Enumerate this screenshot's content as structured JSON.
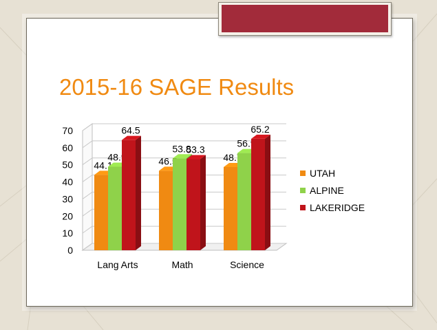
{
  "slide": {
    "title": "2015-16 SAGE Results"
  },
  "colors": {
    "background": "#e7e1d4",
    "banner": "#a22b3a",
    "title": "#f08a12"
  },
  "chart_data": {
    "type": "bar",
    "style": "3d-clustered-column",
    "title": "",
    "xlabel": "",
    "ylabel": "",
    "categories": [
      "Lang Arts",
      "Math",
      "Science"
    ],
    "series": [
      {
        "name": "UTAH",
        "values": [
          44.1,
          46.5,
          48.7
        ],
        "color": "#f08a12"
      },
      {
        "name": "ALPINE",
        "values": [
          48.9,
          53.8,
          56.9
        ],
        "color": "#8fd24a"
      },
      {
        "name": "LAKERIDGE",
        "values": [
          64.5,
          53.3,
          65.2
        ],
        "color": "#c0141b"
      }
    ],
    "ylim": [
      0,
      70
    ],
    "yticks": [
      0,
      10,
      20,
      30,
      40,
      50,
      60,
      70
    ],
    "grid": true,
    "legend": "right",
    "data_labels": true
  }
}
